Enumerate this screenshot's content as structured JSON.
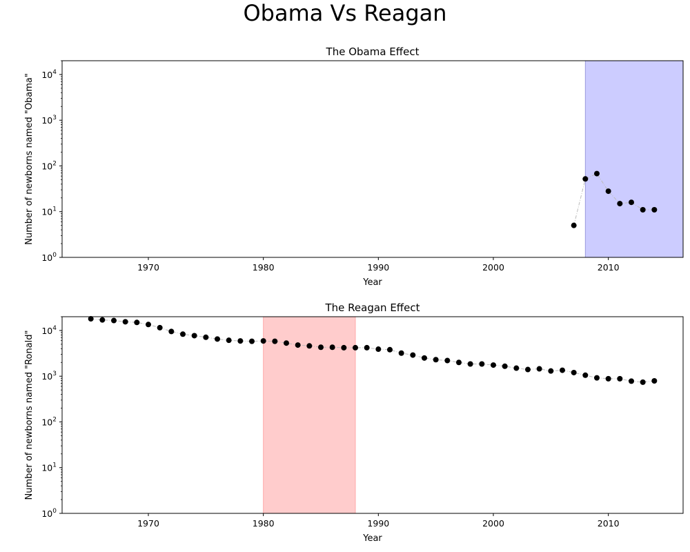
{
  "figure": {
    "title": "Obama Vs Reagan"
  },
  "chart_data": [
    {
      "type": "scatter",
      "title": "The Obama Effect",
      "xlabel": "Year",
      "ylabel": "Number of newborns named \"Obama\"",
      "y_scale": "log",
      "xlim": [
        1962.5,
        2016.5
      ],
      "ylim": [
        1,
        20000
      ],
      "x_ticks": [
        1970,
        1980,
        1990,
        2000,
        2010
      ],
      "y_ticks": [
        {
          "value": 1,
          "base": "10",
          "exp": "0"
        },
        {
          "value": 10,
          "base": "10",
          "exp": "1"
        },
        {
          "value": 100,
          "base": "10",
          "exp": "2"
        },
        {
          "value": 1000,
          "base": "10",
          "exp": "3"
        },
        {
          "value": 10000,
          "base": "10",
          "exp": "4"
        }
      ],
      "highlight": {
        "x_start": 2008,
        "x_end": 2016.5,
        "color": "#ccccff"
      },
      "series": [
        {
          "x": [
            2007,
            2008,
            2009,
            2010,
            2011,
            2012,
            2013,
            2014
          ],
          "y": [
            5,
            52,
            68,
            28,
            15,
            16,
            11,
            11
          ],
          "marker_color": "#000000",
          "line_color": "#bbbbbb"
        }
      ],
      "grid": false
    },
    {
      "type": "scatter",
      "title": "The Reagan Effect",
      "xlabel": "Year",
      "ylabel": "Number of newborns named \"Ronald\"",
      "y_scale": "log",
      "xlim": [
        1962.5,
        2016.5
      ],
      "ylim": [
        1,
        20000
      ],
      "x_ticks": [
        1970,
        1980,
        1990,
        2000,
        2010
      ],
      "y_ticks": [
        {
          "value": 1,
          "base": "10",
          "exp": "0"
        },
        {
          "value": 10,
          "base": "10",
          "exp": "1"
        },
        {
          "value": 100,
          "base": "10",
          "exp": "2"
        },
        {
          "value": 1000,
          "base": "10",
          "exp": "3"
        },
        {
          "value": 10000,
          "base": "10",
          "exp": "4"
        }
      ],
      "highlight": {
        "x_start": 1980,
        "x_end": 1988,
        "color": "#ffcccc"
      },
      "series": [
        {
          "x": [
            1965,
            1966,
            1967,
            1968,
            1969,
            1970,
            1971,
            1972,
            1973,
            1974,
            1975,
            1976,
            1977,
            1978,
            1979,
            1980,
            1981,
            1982,
            1983,
            1984,
            1985,
            1986,
            1987,
            1988,
            1989,
            1990,
            1991,
            1992,
            1993,
            1994,
            1995,
            1996,
            1997,
            1998,
            1999,
            2000,
            2001,
            2002,
            2003,
            2004,
            2005,
            2006,
            2007,
            2008,
            2009,
            2010,
            2011,
            2012,
            2013,
            2014
          ],
          "y": [
            18000,
            17000,
            16500,
            15500,
            15000,
            13500,
            11500,
            9500,
            8300,
            7700,
            7100,
            6500,
            6100,
            5900,
            5800,
            5900,
            5800,
            5300,
            4800,
            4600,
            4300,
            4300,
            4200,
            4200,
            4200,
            3900,
            3800,
            3200,
            2900,
            2500,
            2300,
            2200,
            2000,
            1850,
            1850,
            1750,
            1650,
            1500,
            1400,
            1450,
            1300,
            1350,
            1200,
            1050,
            920,
            880,
            880,
            780,
            740,
            790
          ],
          "marker_color": "#000000",
          "line_color": "#bbbbbb"
        }
      ],
      "grid": false
    }
  ]
}
